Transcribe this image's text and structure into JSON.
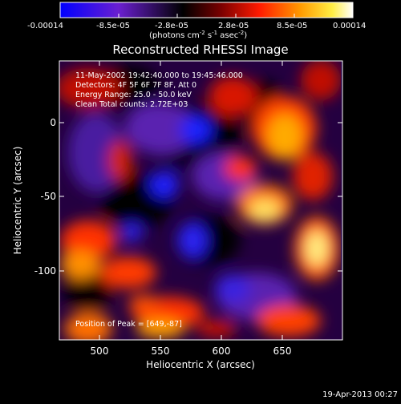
{
  "colorbar": {
    "ticks": [
      "-0.00014",
      "-8.5e-05",
      "-2.8e-05",
      "2.8e-05",
      "8.5e-05",
      "0.00014"
    ],
    "unit_base": "(photons cm",
    "unit_sup1": "-2",
    "unit_mid": " s",
    "unit_sup2": "-1",
    "unit_tail": " asec",
    "unit_sup3": "-2",
    "unit_end": ")",
    "stops": [
      "#0000ff",
      "#8a2be2",
      "#000000",
      "#8b0000",
      "#ff2200",
      "#ffa500",
      "#ffff66",
      "#ffffff"
    ]
  },
  "image": {
    "title": "Reconstructed RHESSI Image",
    "info_lines": [
      "11-May-2002 19:42:40.000 to 19:45:46.000",
      "Detectors: 4F 5F 6F 7F 8F, Att 0",
      "Energy Range: 25.0 - 50.0 keV",
      "Clean    Total counts: 2.72E+03"
    ],
    "peak_text": "Position of Peak = [649,-87]",
    "xlabel": "Heliocentric X (arcsec)",
    "ylabel": "Heliocentric Y (arcsec)",
    "xticks": [
      "500",
      "550",
      "600",
      "650"
    ],
    "yticks": [
      "0",
      "-50",
      "-100"
    ]
  },
  "footer": {
    "timestamp": "19-Apr-2013 00:27"
  }
}
